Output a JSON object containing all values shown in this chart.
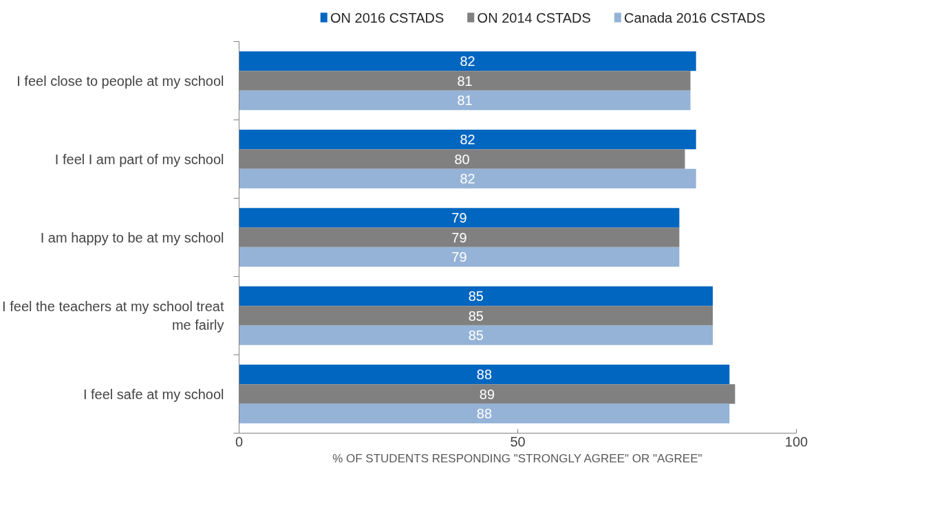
{
  "chart_data": {
    "type": "bar",
    "orientation": "horizontal",
    "xlabel": "% OF STUDENTS RESPONDING \"STRONGLY AGREE\" OR \"AGREE\"",
    "categories": [
      "I feel close to people at my school",
      "I feel I am part of my school",
      "I am happy to be at my school",
      "I feel the teachers at my school treat me fairly",
      "I feel safe at my school"
    ],
    "series": [
      {
        "name": "ON 2016 CSTADS",
        "color": "#0066c0",
        "values": [
          82,
          82,
          79,
          85,
          88
        ]
      },
      {
        "name": "ON 2014 CSTADS",
        "color": "#808080",
        "values": [
          81,
          80,
          79,
          85,
          89
        ]
      },
      {
        "name": "Canada 2016 CSTADS",
        "color": "#95b3d7",
        "values": [
          81,
          82,
          79,
          85,
          88
        ]
      }
    ],
    "xlim": [
      0,
      100
    ],
    "xticks": [
      0,
      50,
      100
    ],
    "data_labels": true,
    "grid": false,
    "legend": "top"
  }
}
